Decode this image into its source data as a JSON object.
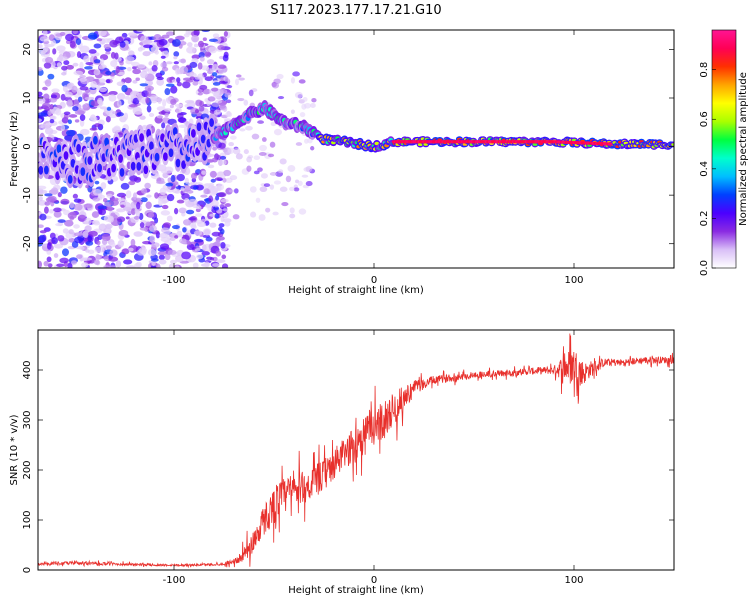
{
  "title": "S117.2023.177.17.21.G10",
  "chart_data": [
    {
      "type": "heatmap",
      "xlabel": "Height of straight line (km)",
      "ylabel": "Frequency (Hz)",
      "xlim": [
        -168,
        150
      ],
      "ylim": [
        -25,
        24
      ],
      "xticks": [
        -100,
        0,
        100
      ],
      "yticks": [
        -20,
        -10,
        0,
        10,
        20
      ],
      "colorbar": {
        "label": "Normalized spectral amplitude",
        "range": [
          0,
          0.96
        ],
        "ticks": [
          0.0,
          0.2,
          0.4,
          0.6,
          0.8
        ],
        "tick_labels": [
          "0.0",
          "0.2",
          "0.4",
          "0.6",
          "0.8"
        ],
        "colormap": [
          "#ffffff",
          "#d9bff7",
          "#8a2be2",
          "#4b00ff",
          "#0040ff",
          "#00bfff",
          "#00ffcc",
          "#00ff40",
          "#aaff00",
          "#ffff00",
          "#ffa500",
          "#ff3000",
          "#ff0055",
          "#ff1493"
        ]
      },
      "ridge": [
        {
          "x": -168,
          "y": -1
        },
        {
          "x": -150,
          "y": -3
        },
        {
          "x": -130,
          "y": -2
        },
        {
          "x": -110,
          "y": -1
        },
        {
          "x": -95,
          "y": -0.5
        },
        {
          "x": -85,
          "y": 0.5
        },
        {
          "x": -75,
          "y": 3
        },
        {
          "x": -65,
          "y": 6
        },
        {
          "x": -55,
          "y": 8
        },
        {
          "x": -45,
          "y": 5
        },
        {
          "x": -35,
          "y": 4
        },
        {
          "x": -25,
          "y": 1.5
        },
        {
          "x": -15,
          "y": 1
        },
        {
          "x": 0,
          "y": 0
        },
        {
          "x": 10,
          "y": 1
        },
        {
          "x": 50,
          "y": 1
        },
        {
          "x": 90,
          "y": 1
        },
        {
          "x": 120,
          "y": 0.5
        },
        {
          "x": 150,
          "y": 0.5
        }
      ]
    },
    {
      "type": "line",
      "xlabel": "Height of straight line (km)",
      "ylabel": "SNR (10 * v/v)",
      "xlim": [
        -168,
        150
      ],
      "ylim": [
        0,
        480
      ],
      "xticks": [
        -100,
        0,
        100
      ],
      "yticks": [
        0,
        100,
        200,
        300,
        400
      ],
      "series": [
        {
          "color": "#e8302c",
          "x": [
            -168,
            -150,
            -130,
            -110,
            -90,
            -75,
            -68,
            -62,
            -55,
            -48,
            -40,
            -32,
            -25,
            -18,
            -10,
            -3,
            5,
            12,
            20,
            30,
            40,
            50,
            60,
            70,
            80,
            90,
            95,
            100,
            105,
            115,
            125,
            135,
            150
          ],
          "y": [
            12,
            14,
            12,
            10,
            10,
            12,
            20,
            45,
            100,
            140,
            160,
            170,
            190,
            220,
            250,
            280,
            300,
            330,
            365,
            380,
            385,
            390,
            392,
            395,
            398,
            400,
            405,
            410,
            395,
            415,
            415,
            420,
            420
          ],
          "noise": [
            3,
            5,
            4,
            3,
            3,
            4,
            10,
            30,
            45,
            55,
            50,
            45,
            45,
            45,
            50,
            55,
            55,
            45,
            20,
            12,
            10,
            10,
            10,
            10,
            10,
            12,
            40,
            55,
            30,
            12,
            10,
            10,
            10
          ]
        }
      ]
    }
  ]
}
